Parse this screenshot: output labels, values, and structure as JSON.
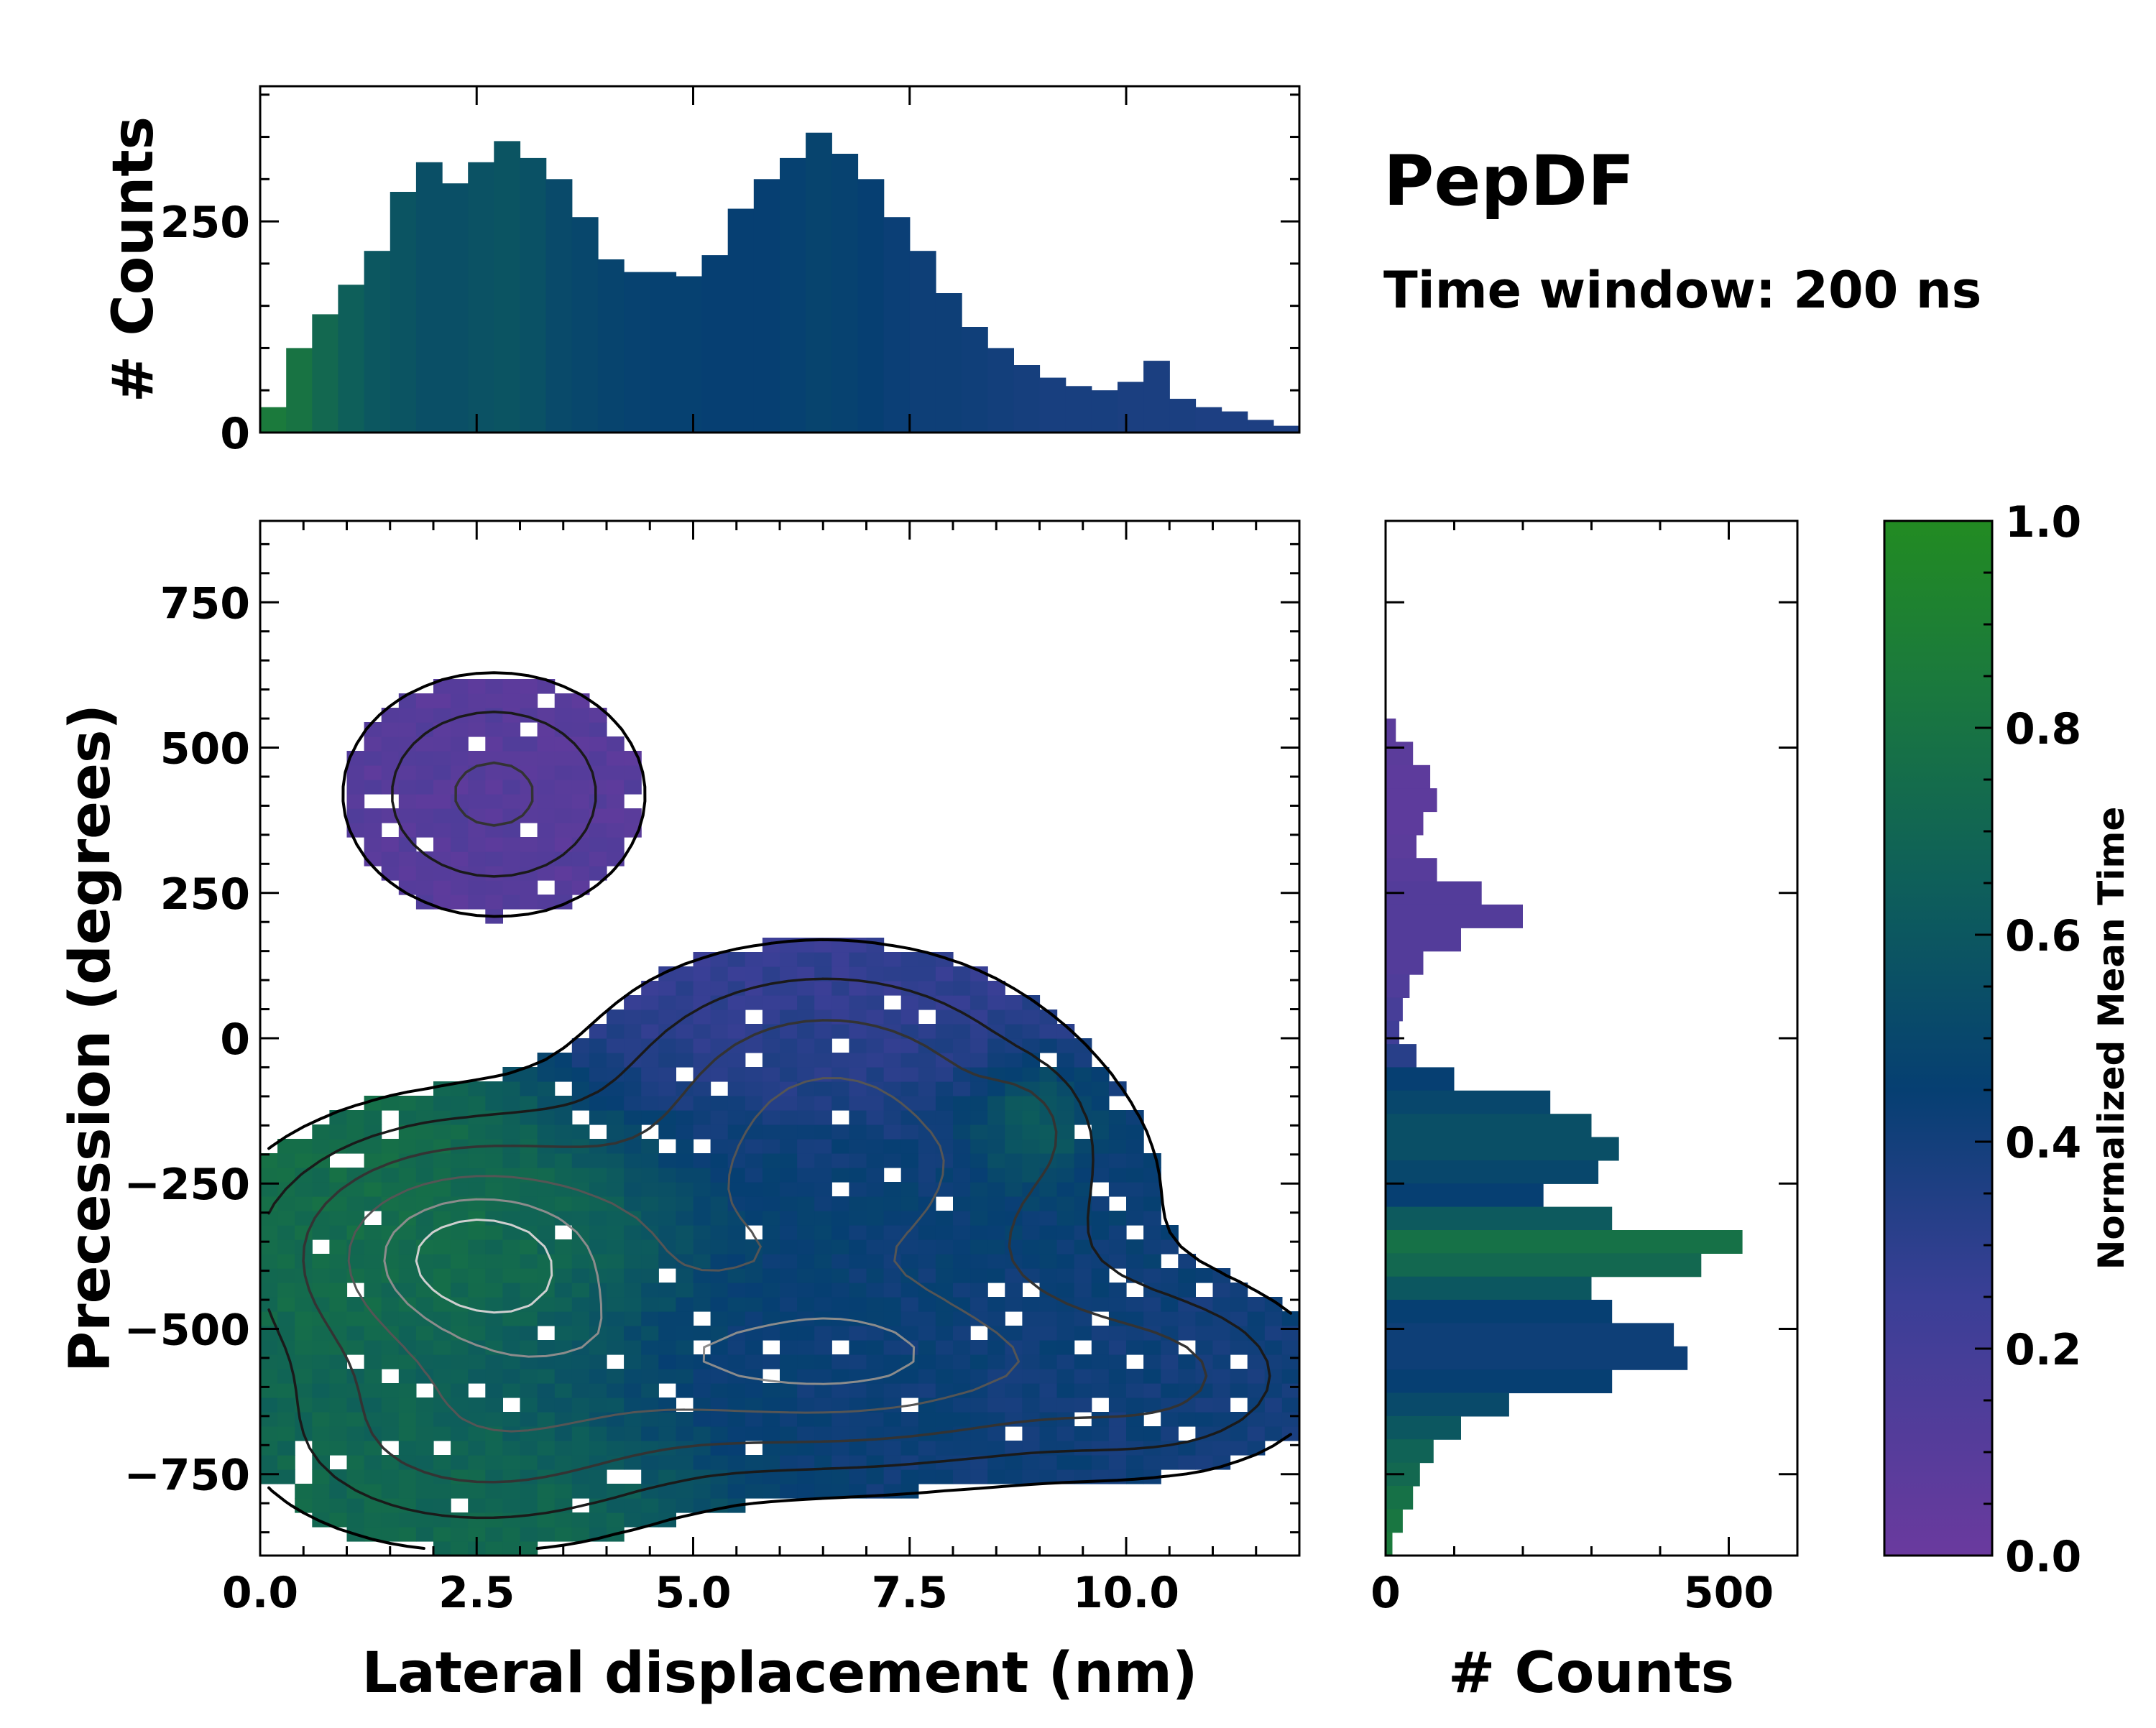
{
  "title": "PepDF",
  "subtitle": "Time window: 200 ns",
  "colors": {
    "low": "#6a3a9e",
    "mid": "#063f72",
    "high": "#228b22",
    "contour": "#000000",
    "contour_light": "#cfcfcf"
  },
  "chart_data": [
    {
      "id": "joint",
      "type": "heatmap",
      "xlabel": "Lateral displacement (nm)",
      "ylabel": "Precession (degrees)",
      "xlim": [
        0,
        12
      ],
      "ylim": [
        -890,
        890
      ],
      "xticks": [
        0,
        2.5,
        5,
        7.5,
        10
      ],
      "xtick_labels": [
        "0.0",
        "2.5",
        "5.0",
        "7.5",
        "10.0"
      ],
      "yticks": [
        -750,
        -500,
        -250,
        0,
        250,
        500,
        750
      ],
      "ytick_labels": [
        "−750",
        "−500",
        "−250",
        "0",
        "250",
        "500",
        "750"
      ],
      "clusters": [
        {
          "x": 2.7,
          "y": 420,
          "sx": 1.0,
          "sy": 120,
          "w": 1.0,
          "t": 0.1
        },
        {
          "x": 6.5,
          "y": -30,
          "sx": 1.5,
          "sy": 120,
          "w": 0.8,
          "t": 0.25
        },
        {
          "x": 2.4,
          "y": -370,
          "sx": 1.4,
          "sy": 130,
          "w": 2.2,
          "t": 0.75
        },
        {
          "x": 6.8,
          "y": -250,
          "sx": 1.8,
          "sy": 140,
          "w": 1.5,
          "t": 0.45
        },
        {
          "x": 6.6,
          "y": -560,
          "sx": 2.4,
          "sy": 110,
          "w": 1.8,
          "t": 0.42
        },
        {
          "x": 2.5,
          "y": -690,
          "sx": 1.5,
          "sy": 110,
          "w": 1.0,
          "t": 0.72
        },
        {
          "x": 8.8,
          "y": -150,
          "sx": 0.4,
          "sy": 60,
          "w": 0.5,
          "t": 0.95
        },
        {
          "x": 10.5,
          "y": -590,
          "sx": 1.0,
          "sy": 90,
          "w": 0.6,
          "t": 0.4
        }
      ]
    },
    {
      "id": "top-marginal",
      "type": "bar",
      "ylabel": "# Counts",
      "xlim": [
        0,
        12
      ],
      "ylim": [
        0,
        410
      ],
      "yticks": [
        0,
        250
      ],
      "ytick_labels": [
        "0",
        "250"
      ],
      "x": [
        0.15,
        0.45,
        0.75,
        1.05,
        1.35,
        1.65,
        1.95,
        2.25,
        2.55,
        2.85,
        3.15,
        3.45,
        3.75,
        4.05,
        4.35,
        4.65,
        4.95,
        5.25,
        5.55,
        5.85,
        6.15,
        6.45,
        6.75,
        7.05,
        7.35,
        7.65,
        7.95,
        8.25,
        8.55,
        8.85,
        9.15,
        9.45,
        9.75,
        10.05,
        10.35,
        10.65,
        10.95,
        11.25,
        11.55,
        11.85
      ],
      "values": [
        30,
        100,
        140,
        175,
        215,
        285,
        320,
        295,
        320,
        345,
        325,
        300,
        255,
        205,
        190,
        190,
        185,
        210,
        265,
        300,
        325,
        355,
        330,
        300,
        255,
        215,
        165,
        125,
        100,
        80,
        65,
        55,
        50,
        60,
        85,
        40,
        30,
        25,
        15,
        8
      ],
      "colors_t": [
        0.85,
        0.8,
        0.72,
        0.65,
        0.6,
        0.58,
        0.55,
        0.55,
        0.57,
        0.58,
        0.56,
        0.52,
        0.5,
        0.48,
        0.47,
        0.46,
        0.46,
        0.45,
        0.45,
        0.45,
        0.46,
        0.48,
        0.47,
        0.45,
        0.43,
        0.42,
        0.42,
        0.41,
        0.4,
        0.39,
        0.38,
        0.38,
        0.38,
        0.37,
        0.37,
        0.37,
        0.36,
        0.36,
        0.36,
        0.36
      ]
    },
    {
      "id": "right-marginal",
      "type": "bar",
      "orientation": "horizontal",
      "xlabel": "# Counts",
      "xlim": [
        0,
        600
      ],
      "xticks": [
        0,
        500
      ],
      "xtick_labels": [
        "0",
        "500"
      ],
      "ylim": [
        -890,
        890
      ],
      "y": [
        530,
        490,
        450,
        410,
        370,
        330,
        290,
        250,
        210,
        170,
        130,
        90,
        50,
        10,
        -30,
        -70,
        -110,
        -150,
        -190,
        -230,
        -270,
        -310,
        -350,
        -390,
        -430,
        -470,
        -510,
        -550,
        -590,
        -630,
        -670,
        -710,
        -750,
        -790,
        -830,
        -870
      ],
      "values": [
        15,
        40,
        65,
        75,
        55,
        45,
        75,
        140,
        200,
        110,
        55,
        35,
        25,
        20,
        45,
        100,
        240,
        300,
        340,
        310,
        230,
        330,
        520,
        460,
        300,
        330,
        420,
        440,
        330,
        180,
        110,
        70,
        50,
        40,
        25,
        10
      ],
      "colors_t": [
        0.08,
        0.08,
        0.07,
        0.07,
        0.07,
        0.08,
        0.1,
        0.12,
        0.12,
        0.12,
        0.12,
        0.14,
        0.18,
        0.22,
        0.32,
        0.45,
        0.5,
        0.55,
        0.55,
        0.5,
        0.45,
        0.62,
        0.78,
        0.72,
        0.6,
        0.45,
        0.42,
        0.42,
        0.45,
        0.52,
        0.6,
        0.68,
        0.72,
        0.78,
        0.82,
        0.85
      ]
    },
    {
      "id": "colorbar",
      "type": "colorbar",
      "label": "Normalized Mean Time",
      "range": [
        0,
        1
      ],
      "ticks": [
        0,
        0.2,
        0.4,
        0.6,
        0.8,
        1.0
      ],
      "tick_labels": [
        "0.0",
        "0.2",
        "0.4",
        "0.6",
        "0.8",
        "1.0"
      ]
    }
  ]
}
